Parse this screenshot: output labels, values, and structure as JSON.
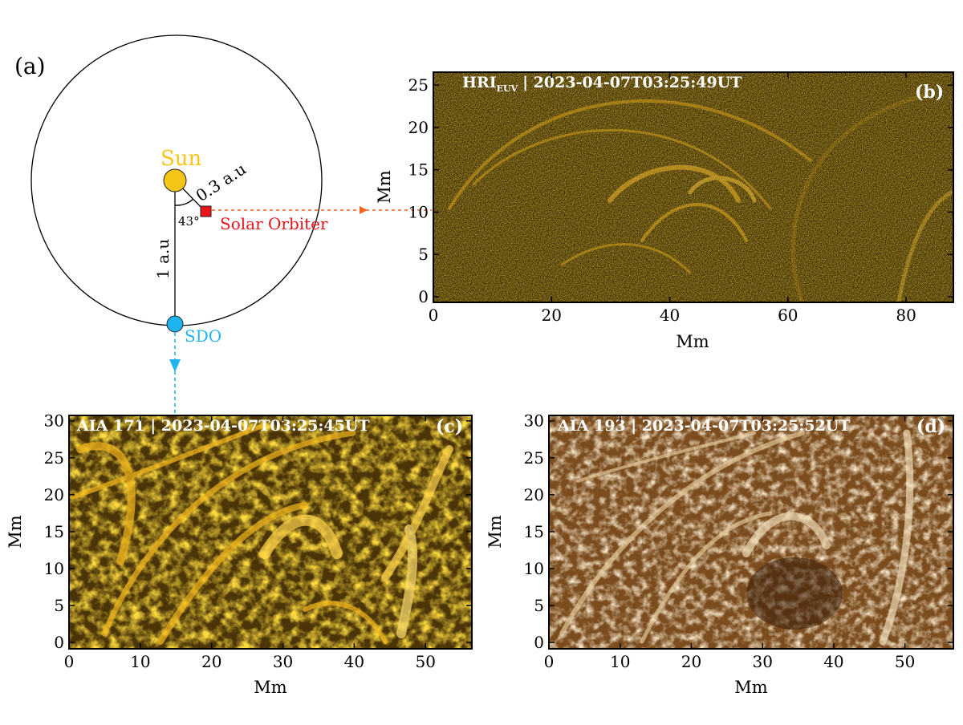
{
  "figure": {
    "panel_a": {
      "label": "(a)",
      "sun_label": "Sun",
      "sun_color": "#f5c518",
      "distance_short": "0.3 a.u",
      "distance_long": "1 a.u",
      "angle": "43°",
      "orbiter_label": "Solar Orbiter",
      "orbiter_color": "#e8141a",
      "sdo_label": "SDO",
      "sdo_color": "#1eb4f0",
      "arrow_orbiter_color": "#f2651c"
    },
    "panel_b": {
      "title_main": "HRI",
      "title_sub": "EUV",
      "title_rest": "| 2023-04-07T03:25:49UT",
      "label": "(b)",
      "xlabel": "Mm",
      "ylabel": "Mm",
      "xticks": [
        "0",
        "20",
        "40",
        "60",
        "80"
      ],
      "yticks": [
        "0",
        "5",
        "10",
        "15",
        "20",
        "25"
      ]
    },
    "panel_c": {
      "title": "AIA 171 | 2023-04-07T03:25:45UT",
      "label": "(c)",
      "xlabel": "Mm",
      "ylabel": "Mm",
      "xticks": [
        "0",
        "10",
        "20",
        "30",
        "40",
        "50"
      ],
      "yticks": [
        "0",
        "5",
        "10",
        "15",
        "20",
        "25",
        "30"
      ]
    },
    "panel_d": {
      "title": "AIA 193 | 2023-04-07T03:25:52UT",
      "label": "(d)",
      "xlabel": "Mm",
      "ylabel": "Mm",
      "xticks": [
        "0",
        "10",
        "20",
        "30",
        "40",
        "50"
      ],
      "yticks": [
        "0",
        "5",
        "10",
        "15",
        "20",
        "25",
        "30"
      ]
    }
  }
}
